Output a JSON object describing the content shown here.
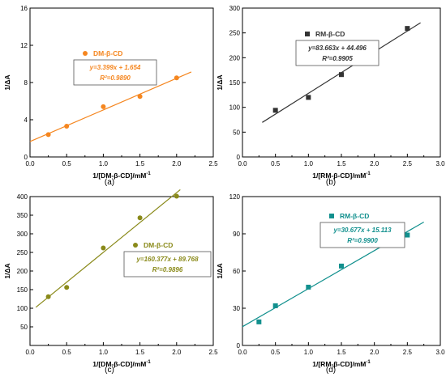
{
  "chart_data": [
    {
      "type": "scatter",
      "caption": "(a)",
      "xlabel": "1/[DM-β-CD]/mM",
      "xlabel_sup": "-1",
      "ylabel": "1/ΔA",
      "xlim": [
        0.0,
        2.5
      ],
      "ylim": [
        0,
        16
      ],
      "xticks": [
        0.0,
        0.5,
        1.0,
        1.5,
        2.0,
        2.5
      ],
      "yticks": [
        0,
        4,
        8,
        12,
        16
      ],
      "color": "#f5861f",
      "marker": "circle",
      "legend": "DM-β-CD",
      "equation": "y=3.399x + 1.654",
      "r2": "R²=0.9890",
      "series": [
        {
          "name": "DM-β-CD",
          "x": [
            0.25,
            0.5,
            1.0,
            1.5,
            2.0
          ],
          "y": [
            2.4,
            3.3,
            5.4,
            6.5,
            8.5
          ]
        }
      ],
      "fit": {
        "slope": 3.399,
        "intercept": 1.654,
        "x_range": [
          0.0,
          2.2
        ]
      }
    },
    {
      "type": "scatter",
      "caption": "(b)",
      "xlabel": "1/[RM-β-CD]/mM",
      "xlabel_sup": "-1",
      "ylabel": "1/ΔA",
      "xlim": [
        0.0,
        3.0
      ],
      "ylim": [
        0,
        300
      ],
      "xticks": [
        0.0,
        0.5,
        1.0,
        1.5,
        2.0,
        2.5,
        3.0
      ],
      "yticks": [
        0,
        50,
        100,
        150,
        200,
        250,
        300
      ],
      "color": "#333333",
      "marker": "square",
      "legend": "RM-β-CD",
      "equation": "y=83.663x + 44.496",
      "r2": "R²=0.9905",
      "series": [
        {
          "name": "RM-β-CD",
          "x": [
            0.5,
            1.0,
            1.5,
            2.0,
            2.5
          ],
          "y": [
            94,
            120,
            166,
            210,
            259
          ]
        }
      ],
      "fit": {
        "slope": 83.663,
        "intercept": 44.496,
        "x_range": [
          0.3,
          2.7
        ]
      }
    },
    {
      "type": "scatter",
      "caption": "(c)",
      "xlabel": "1/[DM-β-CD]/mM",
      "xlabel_sup": "-1",
      "ylabel": "1/ΔA",
      "xlim": [
        0.0,
        2.5
      ],
      "ylim": [
        0,
        400
      ],
      "xticks": [
        0.0,
        0.5,
        1.0,
        1.5,
        2.0,
        2.5
      ],
      "yticks": [
        50,
        100,
        150,
        200,
        250,
        300,
        350,
        400
      ],
      "color": "#8a8a1a",
      "marker": "circle",
      "legend": "DM-β-CD",
      "equation": "y=160.377x + 89.768",
      "r2": "R²=0.9896",
      "series": [
        {
          "name": "DM-β-CD",
          "x": [
            0.25,
            0.5,
            1.0,
            1.5,
            2.0
          ],
          "y": [
            131,
            156,
            262,
            343,
            401
          ]
        }
      ],
      "fit": {
        "slope": 160.377,
        "intercept": 89.768,
        "x_range": [
          0.08,
          2.05
        ]
      }
    },
    {
      "type": "scatter",
      "caption": "(d)",
      "xlabel": "1/[RM-β-CD]/mM",
      "xlabel_sup": "-1",
      "ylabel": "1/ΔA",
      "xlim": [
        0.0,
        3.0
      ],
      "ylim": [
        0,
        120
      ],
      "xticks": [
        0.0,
        0.5,
        1.0,
        1.5,
        2.0,
        2.5,
        3.0
      ],
      "yticks": [
        0,
        30,
        60,
        90,
        120
      ],
      "color": "#12908e",
      "marker": "square",
      "legend": "RM-β-CD",
      "equation": "y=30.677x + 15.113",
      "r2": "R²=0.9900",
      "series": [
        {
          "name": "RM-β-CD",
          "x": [
            0.25,
            0.5,
            1.0,
            1.5,
            2.5
          ],
          "y": [
            19,
            32,
            47,
            64,
            89
          ]
        }
      ],
      "fit": {
        "slope": 30.677,
        "intercept": 15.113,
        "x_range": [
          0.0,
          2.75
        ]
      }
    }
  ]
}
